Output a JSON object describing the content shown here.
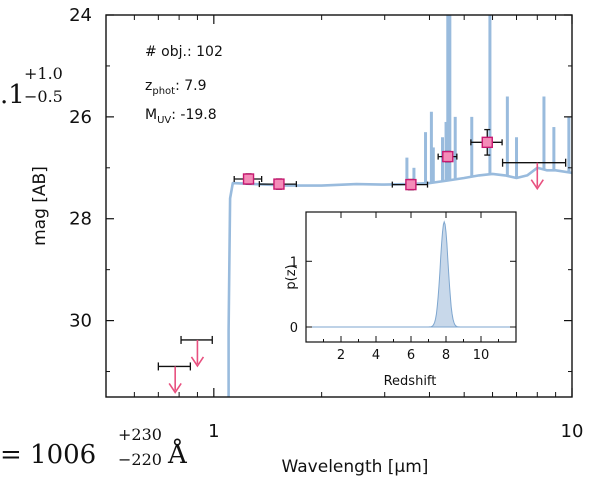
{
  "side_text": {
    "top_left_fragment": ".1",
    "top_left_sup": "+1.0",
    "top_left_sub": "−0.5",
    "bottom_left_fragment": "= 1006",
    "bottom_left_sup": "+230",
    "bottom_left_sub": "−220",
    "bottom_left_unit": "Å"
  },
  "info": {
    "obj_label": "# obj.: 102",
    "zphot_main": "z",
    "zphot_sub": "phot",
    "zphot_value": ": 7.9",
    "muv_main": "M",
    "muv_sub": "UV",
    "muv_value": ": -19.8"
  },
  "colors": {
    "sed_line": "#99bbdd",
    "point_fill": "#f48cb8",
    "point_edge": "#c81870",
    "arrow": "#e8507f",
    "pz_fill": "#c8d8ea",
    "pz_line": "#7ea6cf",
    "axis": "#111111"
  },
  "chart_data": [
    {
      "type": "line",
      "xlabel": "Wavelength [μm]",
      "ylabel": "mag [AB]",
      "xscale": "log",
      "xlim": [
        0.5,
        10
      ],
      "ylim": [
        31.5,
        24
      ],
      "y_inverted": true,
      "xticks": [
        1,
        10
      ],
      "xtick_labels": [
        "1",
        "10"
      ],
      "yticks": [
        24,
        26,
        28,
        30
      ],
      "ytick_labels": [
        "24",
        "26",
        "28",
        "30"
      ],
      "grid": false,
      "series": [
        {
          "kind": "sed-model",
          "points": [
            [
              1.1,
              31.6
            ],
            [
              1.1,
              30.2
            ],
            [
              1.105,
              28.8
            ],
            [
              1.11,
              27.6
            ],
            [
              1.13,
              27.3
            ],
            [
              1.3,
              27.32
            ],
            [
              1.6,
              27.35
            ],
            [
              2.0,
              27.35
            ],
            [
              2.5,
              27.32
            ],
            [
              3.0,
              27.33
            ],
            [
              3.5,
              27.32
            ],
            [
              4.0,
              27.3
            ],
            [
              4.5,
              27.25
            ],
            [
              5.0,
              27.2
            ],
            [
              5.5,
              27.15
            ],
            [
              6.0,
              27.12
            ],
            [
              6.5,
              27.15
            ],
            [
              7.0,
              27.2
            ],
            [
              7.5,
              27.15
            ],
            [
              8.0,
              27.0
            ],
            [
              8.5,
              27.05
            ],
            [
              9.0,
              27.05
            ],
            [
              10.0,
              27.1
            ]
          ],
          "emission_lines": [
            [
              3.46,
              26.8
            ],
            [
              3.62,
              27.0
            ],
            [
              3.9,
              26.3
            ],
            [
              4.05,
              25.9
            ],
            [
              4.1,
              26.6
            ],
            [
              4.35,
              26.4
            ],
            [
              4.45,
              26.1
            ],
            [
              4.5,
              24.0
            ],
            [
              4.56,
              24.0
            ],
            [
              4.72,
              26.0
            ],
            [
              5.25,
              26.0
            ],
            [
              5.9,
              24.0
            ],
            [
              6.6,
              25.6
            ],
            [
              7.0,
              26.4
            ],
            [
              8.35,
              25.6
            ],
            [
              8.9,
              26.2
            ],
            [
              9.8,
              26.0
            ]
          ]
        },
        {
          "kind": "detections",
          "x": [
            1.25,
            1.52,
            3.55,
            4.5,
            5.8
          ],
          "y": [
            27.22,
            27.32,
            27.33,
            26.78,
            26.5
          ],
          "xerr": [
            0.11,
            0.18,
            0.4,
            0.27,
            0.58
          ],
          "yerr": [
            0.1,
            0.1,
            0.1,
            0.1,
            0.25
          ]
        },
        {
          "kind": "upper-limits",
          "x": [
            0.78,
            0.9,
            8.0
          ],
          "y": [
            30.9,
            30.38,
            26.9
          ],
          "xerr": [
            0.08,
            0.09,
            1.6
          ]
        }
      ]
    },
    {
      "type": "area",
      "xlabel": "Redshift",
      "ylabel": "p(z)",
      "xlim": [
        0,
        12
      ],
      "ylim": [
        0,
        1.75
      ],
      "xticks": [
        2,
        4,
        6,
        8,
        10
      ],
      "xtick_labels": [
        "2",
        "4",
        "6",
        "8",
        "10"
      ],
      "yticks": [
        0,
        1
      ],
      "ytick_labels": [
        "0",
        "1"
      ],
      "z_peak": 7.9,
      "peak_height": 1.6,
      "sigma": 0.22
    }
  ]
}
